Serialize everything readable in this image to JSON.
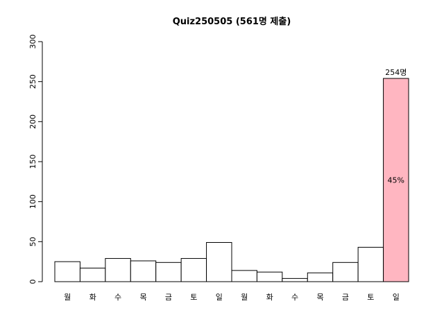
{
  "chart_data": {
    "type": "bar",
    "title": "Quiz250505 (561명 제출)",
    "xlabel": "",
    "ylabel": "",
    "ylim": [
      0,
      300
    ],
    "yticks": [
      0,
      50,
      100,
      150,
      200,
      250,
      300
    ],
    "categories": [
      "월",
      "화",
      "수",
      "목",
      "금",
      "토",
      "일",
      "월",
      "화",
      "수",
      "목",
      "금",
      "토",
      "일"
    ],
    "values": [
      25,
      17,
      29,
      26,
      24,
      29,
      49,
      14,
      12,
      4,
      11,
      24,
      43,
      254
    ],
    "bar_color": "#ffffff",
    "highlight_index": 13,
    "highlight_color": "#ffb6c1",
    "highlight_top_label": "254명",
    "highlight_inner_label": "45%",
    "grid": false,
    "legend": "none"
  }
}
